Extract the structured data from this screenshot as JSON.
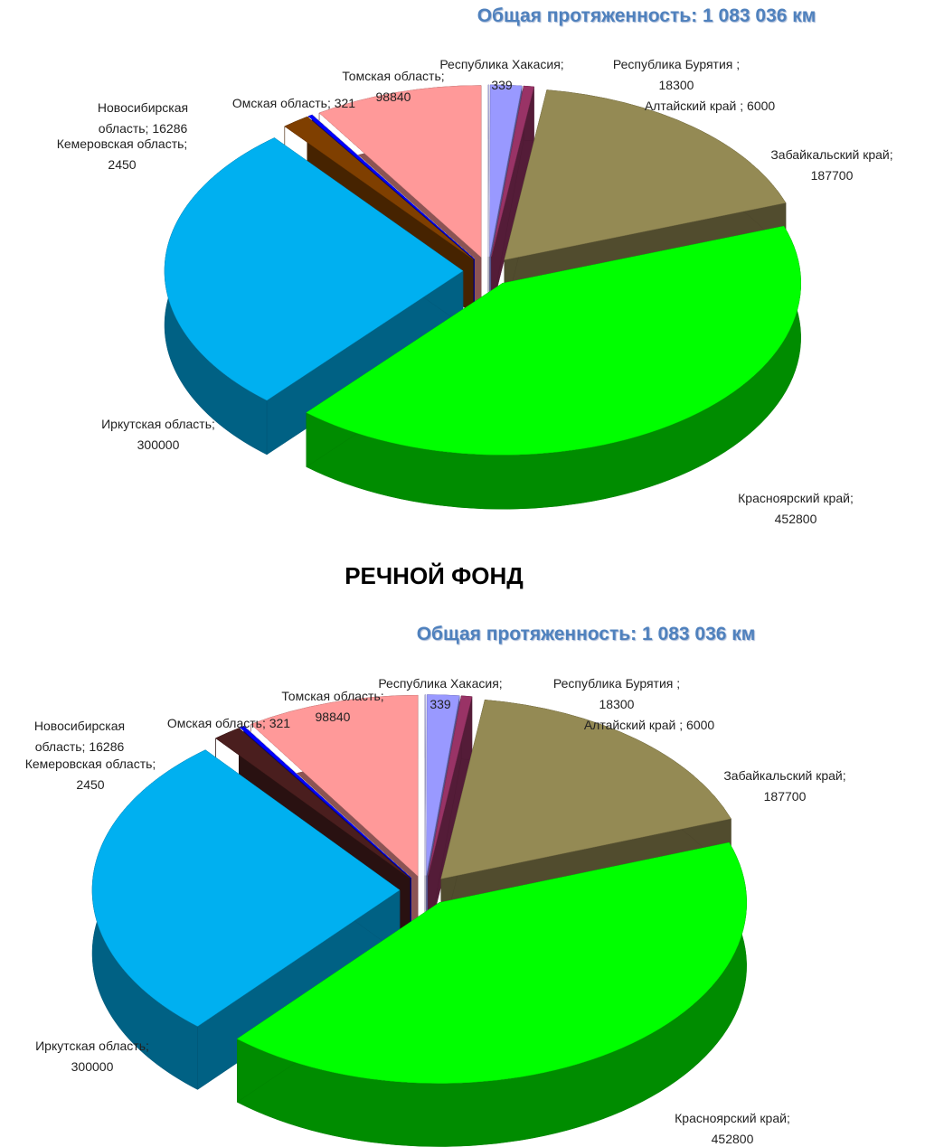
{
  "heading": "РЕЧНОЙ ФОНД",
  "chart_data": [
    {
      "type": "pie",
      "title": "Общая протяженность: 1 083 036 км",
      "categories": [
        "Республика Хакасия;",
        "Республика Бурятия ;",
        "Алтайский край ;",
        "Забайкальский край;",
        "Красноярский край;",
        "Иркутская область;",
        "Новосибирская область;",
        "Кемеровская область;",
        "Омская область;",
        "Томская область;"
      ],
      "values": [
        339,
        18300,
        6000,
        187700,
        452800,
        300000,
        16286,
        2450,
        321,
        98840
      ],
      "colors": [
        "#ccccff",
        "#9999ff",
        "#993366",
        "#948a54",
        "#00ff00",
        "#00b0f0",
        "#7f3f00",
        "#0000ff",
        "#ffffff",
        "#ff9999"
      ]
    },
    {
      "type": "pie",
      "title": "Общая протяженность: 1 083 036 км",
      "categories": [
        "Республика Хакасия;",
        "Республика Бурятия ;",
        "Алтайский край ;",
        "Забайкальский край;",
        "Красноярский край;",
        "Иркутская область;",
        "Новосибирская область;",
        "Кемеровская область;",
        "Омская область;",
        "Томская область;"
      ],
      "values": [
        339,
        18300,
        6000,
        187700,
        452800,
        300000,
        16286,
        2450,
        321,
        98840
      ],
      "colors": [
        "#ccccff",
        "#9999ff",
        "#993366",
        "#948a54",
        "#00ff00",
        "#00b0f0",
        "#4a1e1e",
        "#0000ff",
        "#ffffff",
        "#ff9999"
      ]
    }
  ]
}
